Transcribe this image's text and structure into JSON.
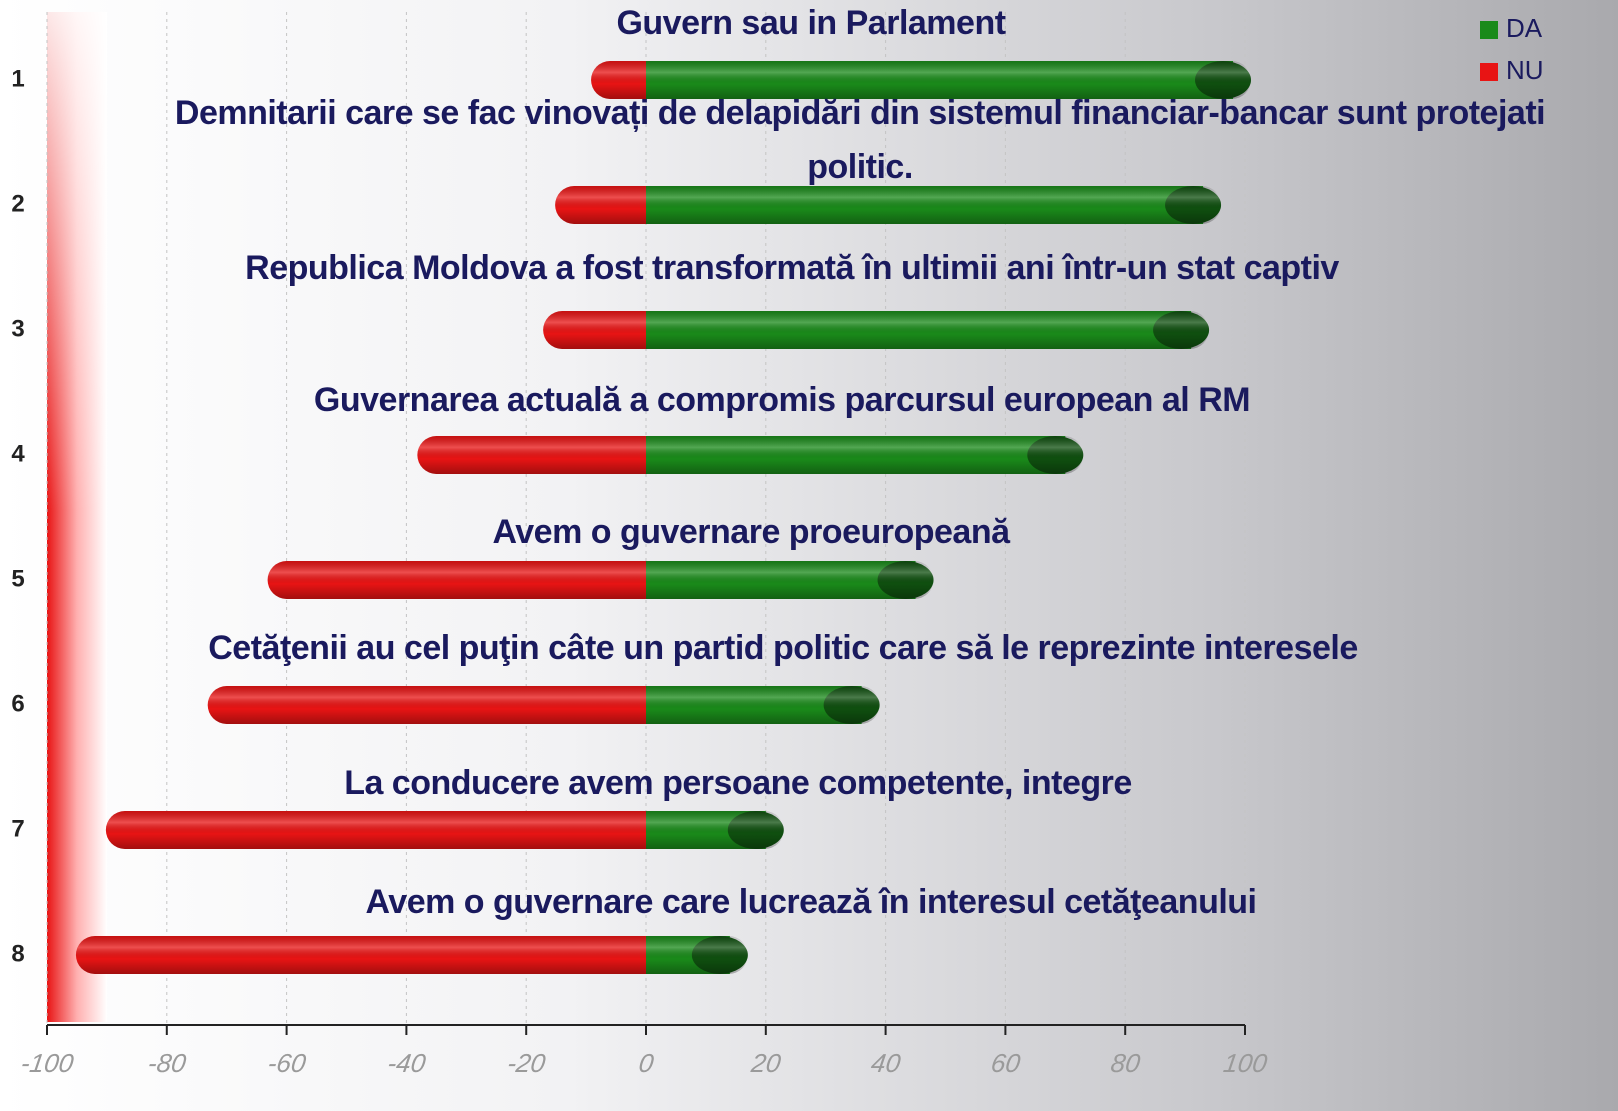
{
  "chart_data": {
    "type": "diverging_bar",
    "categories": [
      "1",
      "2",
      "3",
      "4",
      "5",
      "6",
      "7",
      "8"
    ],
    "statements": [
      "Guvern sau in Parlament",
      "Demnitarii care se fac vinovați de delapidări din sistemul financiar-bancar sunt protejati politic.",
      "Republica Moldova a fost transformată în ultimii ani într-un stat captiv",
      "Guvernarea actuală a compromis parcursul european al RM",
      "Avem  o guvernare proeuropeană",
      "Cetăţenii au  cel puţin câte un partid politic care să le reprezinte interesele",
      "La conducere avem persoane competente, integre",
      "Avem  o guvernare care lucrează în interesul cetăţeanului"
    ],
    "series": [
      {
        "name": "DA",
        "color": "#1a8a1a",
        "values": [
          98,
          93,
          91,
          70,
          45,
          36,
          20,
          14
        ]
      },
      {
        "name": "NU",
        "color": "#e81414",
        "values": [
          -6,
          -12,
          -14,
          -35,
          -60,
          -70,
          -87,
          -92
        ]
      }
    ],
    "xlim": [
      -100,
      100
    ],
    "xticks": [
      -100,
      -80,
      -60,
      -40,
      -20,
      0,
      20,
      40,
      60,
      80,
      100
    ],
    "grid": true,
    "legend": "top-right"
  }
}
